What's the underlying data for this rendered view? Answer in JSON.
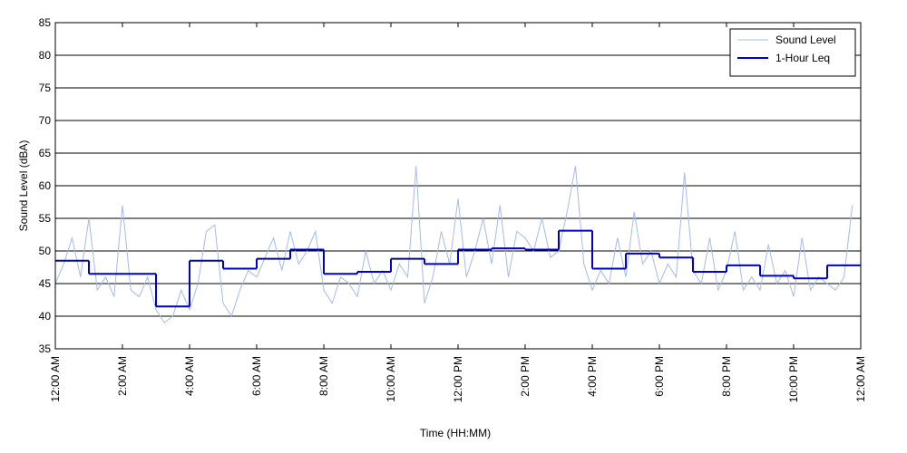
{
  "chart_data": {
    "type": "line",
    "xlabel": "Time (HH:MM)",
    "ylabel": "Sound Level (dBA)",
    "xlim": [
      0,
      24
    ],
    "ylim": [
      35,
      85
    ],
    "xticks": [
      {
        "value": 0,
        "label": "12:00 AM"
      },
      {
        "value": 2,
        "label": "2:00 AM"
      },
      {
        "value": 4,
        "label": "4:00 AM"
      },
      {
        "value": 6,
        "label": "6:00 AM"
      },
      {
        "value": 8,
        "label": "8:00 AM"
      },
      {
        "value": 10,
        "label": "10:00 AM"
      },
      {
        "value": 12,
        "label": "12:00 PM"
      },
      {
        "value": 14,
        "label": "2:00 PM"
      },
      {
        "value": 16,
        "label": "4:00 PM"
      },
      {
        "value": 18,
        "label": "6:00 PM"
      },
      {
        "value": 20,
        "label": "8:00 PM"
      },
      {
        "value": 22,
        "label": "10:00 PM"
      },
      {
        "value": 24,
        "label": "12:00 AM"
      }
    ],
    "yticks": [
      35,
      40,
      45,
      50,
      55,
      60,
      65,
      70,
      75,
      80,
      85
    ],
    "grid": true,
    "legend": "upper right",
    "series": [
      {
        "name": "Sound Level",
        "color": "#a3baf0",
        "x": [
          0,
          0.25,
          0.5,
          0.75,
          1,
          1.25,
          1.5,
          1.75,
          2,
          2.25,
          2.5,
          2.75,
          3,
          3.25,
          3.5,
          3.75,
          4,
          4.25,
          4.5,
          4.75,
          5,
          5.25,
          5.5,
          5.75,
          6,
          6.25,
          6.5,
          6.75,
          7,
          7.25,
          7.5,
          7.75,
          8,
          8.25,
          8.5,
          8.75,
          9,
          9.25,
          9.5,
          9.75,
          10,
          10.25,
          10.5,
          10.75,
          11,
          11.25,
          11.5,
          11.75,
          12,
          12.25,
          12.5,
          12.75,
          13,
          13.25,
          13.5,
          13.75,
          14,
          14.25,
          14.5,
          14.75,
          15,
          15.25,
          15.5,
          15.75,
          16,
          16.25,
          16.5,
          16.75,
          17,
          17.25,
          17.5,
          17.75,
          18,
          18.25,
          18.5,
          18.75,
          19,
          19.25,
          19.5,
          19.75,
          20,
          20.25,
          20.5,
          20.75,
          21,
          21.25,
          21.5,
          21.75,
          22,
          22.25,
          22.5,
          22.75,
          23,
          23.25,
          23.5,
          23.75
        ],
        "values": [
          45,
          48,
          52,
          46,
          55,
          44,
          46,
          43,
          57,
          44,
          43,
          46,
          41,
          39,
          40,
          44,
          41,
          45,
          53,
          54,
          42,
          40,
          44,
          47,
          46,
          49,
          52,
          47,
          53,
          48,
          50,
          53,
          44,
          42,
          46,
          45,
          43,
          50,
          45,
          47,
          44,
          48,
          46,
          63,
          42,
          46,
          53,
          48,
          58,
          46,
          50,
          55,
          48,
          57,
          46,
          53,
          52,
          50,
          55,
          49,
          50,
          56,
          63,
          48,
          44,
          47,
          45,
          52,
          46,
          56,
          48,
          50,
          45,
          48,
          46,
          62,
          47,
          45,
          52,
          44,
          47,
          53,
          44,
          46,
          44,
          51,
          45,
          47,
          43,
          52,
          44,
          46,
          45,
          44,
          46,
          57
        ]
      },
      {
        "name": "1-Hour Leq",
        "color": "#0000cc",
        "step": true,
        "x": [
          0,
          1,
          2,
          3,
          4,
          5,
          6,
          7,
          8,
          9,
          10,
          11,
          12,
          13,
          14,
          15,
          16,
          17,
          18,
          19,
          20,
          21,
          22,
          23
        ],
        "values": [
          48.5,
          46.5,
          46.5,
          41.5,
          48.5,
          47.3,
          48.8,
          50.2,
          46.5,
          46.8,
          48.8,
          48,
          50.2,
          50.4,
          50.2,
          53.1,
          47.3,
          49.6,
          49,
          46.8,
          47.8,
          46.2,
          45.8,
          47.8
        ]
      }
    ]
  }
}
